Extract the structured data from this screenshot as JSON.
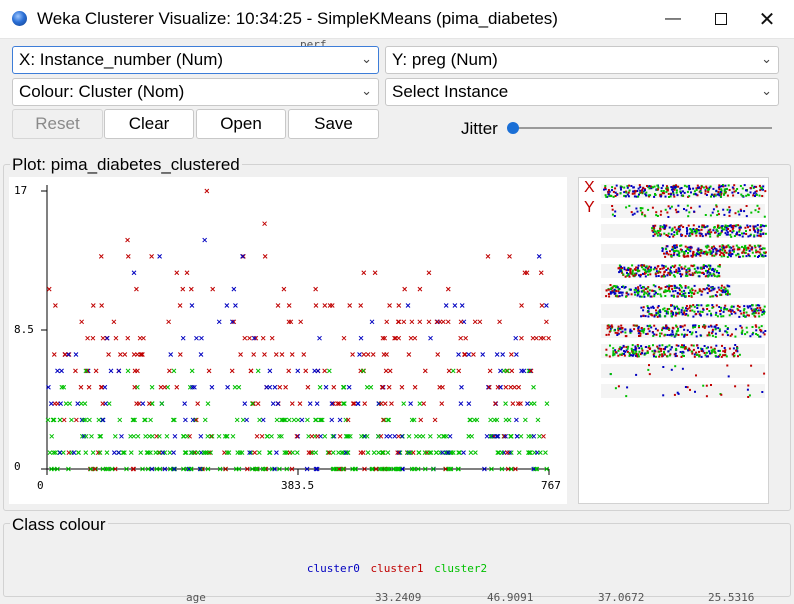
{
  "window": {
    "title": "Weka Clusterer Visualize: 10:34:25 - SimpleKMeans (pima_diabetes)",
    "minimize_icon": "minimize-icon",
    "maximize_icon": "maximize-icon",
    "close_icon": "close-icon"
  },
  "controls": {
    "x_axis": "X: Instance_number (Num)",
    "y_axis": "Y: preg (Num)",
    "colour": "Colour: Cluster (Nom)",
    "select": "Select Instance",
    "reset": "Reset",
    "clear": "Clear",
    "open": "Open",
    "save": "Save",
    "jitter": "Jitter",
    "jitter_value": 0
  },
  "plot": {
    "title": "Plot: pima_diabetes_clustered",
    "y_ticks": [
      "17",
      "8.5",
      "0"
    ],
    "x_ticks": [
      "0",
      "383.5",
      "767"
    ],
    "matrix_x": "X",
    "matrix_y": "Y"
  },
  "class_colour": {
    "title": "Class colour",
    "items": [
      {
        "label": "cluster0",
        "color": "#0000c0"
      },
      {
        "label": "cluster1",
        "color": "#c00000"
      },
      {
        "label": "cluster2",
        "color": "#00c000"
      }
    ]
  },
  "background_peek": {
    "row_label": "age",
    "values": [
      "33.2409",
      "46.9091",
      "37.0672",
      "25.5316"
    ],
    "top_text": "perf"
  },
  "chart_data": {
    "type": "scatter",
    "title": "Plot: pima_diabetes_clustered",
    "xlim": [
      0,
      767
    ],
    "ylim": [
      0,
      17
    ],
    "x_ticks": [
      0,
      383.5,
      767
    ],
    "y_ticks": [
      0,
      8.5,
      17
    ],
    "marker": "x",
    "series": [
      {
        "name": "cluster0",
        "color": "#0000c0",
        "description": "blue crosses spread across levels 0-13"
      },
      {
        "name": "cluster1",
        "color": "#c00000",
        "description": "red crosses concentrated at higher preg values 4-17"
      },
      {
        "name": "cluster2",
        "color": "#00c000",
        "description": "green crosses concentrated at low preg values 0-5"
      }
    ]
  }
}
